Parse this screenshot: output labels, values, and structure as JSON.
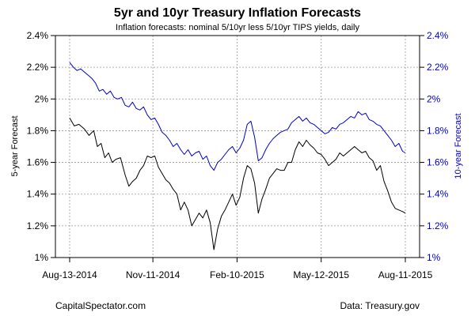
{
  "chart_data": {
    "type": "line",
    "title": "5yr and 10yr Treasury Inflation Forecasts",
    "subtitle": "Inflation forecasts: nominal 5/10yr less 5/10yr TIPS yields, daily",
    "ylabel_left": "5-year Forecast",
    "ylabel_right": "10-year Forecast",
    "xlabel": "",
    "x_tick_labels": [
      "Aug-13-2014",
      "Nov-11-2014",
      "Feb-10-2015",
      "May-12-2015",
      "Aug-11-2015"
    ],
    "x_ticks_days": [
      0,
      90,
      181,
      272,
      363
    ],
    "x_range_days": [
      0,
      363
    ],
    "y_tick_labels": [
      "1%",
      "1.2%",
      "1.4%",
      "1.6%",
      "1.8%",
      "2%",
      "2.2%",
      "2.4%"
    ],
    "y_ticks": [
      1.0,
      1.2,
      1.4,
      1.6,
      1.8,
      2.0,
      2.2,
      2.4
    ],
    "ylim": [
      1.0,
      2.4
    ],
    "grid": true,
    "series": [
      {
        "name": "5-year Forecast",
        "axis": "left",
        "color": "#000000",
        "points": [
          [
            0,
            1.88
          ],
          [
            5,
            1.83
          ],
          [
            10,
            1.84
          ],
          [
            16,
            1.81
          ],
          [
            21,
            1.77
          ],
          [
            26,
            1.8
          ],
          [
            30,
            1.7
          ],
          [
            34,
            1.72
          ],
          [
            38,
            1.63
          ],
          [
            42,
            1.66
          ],
          [
            46,
            1.6
          ],
          [
            50,
            1.62
          ],
          [
            55,
            1.63
          ],
          [
            60,
            1.52
          ],
          [
            64,
            1.45
          ],
          [
            68,
            1.48
          ],
          [
            72,
            1.5
          ],
          [
            76,
            1.55
          ],
          [
            80,
            1.58
          ],
          [
            84,
            1.64
          ],
          [
            88,
            1.63
          ],
          [
            92,
            1.64
          ],
          [
            96,
            1.57
          ],
          [
            100,
            1.53
          ],
          [
            104,
            1.49
          ],
          [
            108,
            1.47
          ],
          [
            112,
            1.43
          ],
          [
            116,
            1.4
          ],
          [
            120,
            1.3
          ],
          [
            124,
            1.35
          ],
          [
            128,
            1.3
          ],
          [
            132,
            1.2
          ],
          [
            136,
            1.24
          ],
          [
            140,
            1.28
          ],
          [
            144,
            1.25
          ],
          [
            148,
            1.3
          ],
          [
            152,
            1.22
          ],
          [
            156,
            1.05
          ],
          [
            160,
            1.18
          ],
          [
            164,
            1.26
          ],
          [
            168,
            1.3
          ],
          [
            172,
            1.35
          ],
          [
            176,
            1.4
          ],
          [
            180,
            1.33
          ],
          [
            184,
            1.38
          ],
          [
            188,
            1.5
          ],
          [
            192,
            1.58
          ],
          [
            196,
            1.56
          ],
          [
            200,
            1.47
          ],
          [
            204,
            1.28
          ],
          [
            208,
            1.37
          ],
          [
            212,
            1.43
          ],
          [
            216,
            1.5
          ],
          [
            220,
            1.53
          ],
          [
            224,
            1.56
          ],
          [
            228,
            1.55
          ],
          [
            232,
            1.55
          ],
          [
            236,
            1.6
          ],
          [
            240,
            1.6
          ],
          [
            244,
            1.68
          ],
          [
            248,
            1.73
          ],
          [
            252,
            1.7
          ],
          [
            256,
            1.74
          ],
          [
            260,
            1.71
          ],
          [
            264,
            1.69
          ],
          [
            268,
            1.66
          ],
          [
            272,
            1.65
          ],
          [
            276,
            1.62
          ],
          [
            280,
            1.58
          ],
          [
            284,
            1.6
          ],
          [
            288,
            1.62
          ],
          [
            292,
            1.66
          ],
          [
            296,
            1.64
          ],
          [
            300,
            1.66
          ],
          [
            304,
            1.68
          ],
          [
            308,
            1.7
          ],
          [
            312,
            1.68
          ],
          [
            316,
            1.66
          ],
          [
            320,
            1.67
          ],
          [
            324,
            1.63
          ],
          [
            328,
            1.61
          ],
          [
            332,
            1.55
          ],
          [
            336,
            1.58
          ],
          [
            340,
            1.48
          ],
          [
            344,
            1.42
          ],
          [
            348,
            1.35
          ],
          [
            352,
            1.31
          ],
          [
            356,
            1.3
          ],
          [
            360,
            1.29
          ],
          [
            363,
            1.28
          ]
        ]
      },
      {
        "name": "10-year Forecast",
        "axis": "right",
        "color": "#0000cc",
        "points": [
          [
            0,
            2.23
          ],
          [
            4,
            2.2
          ],
          [
            8,
            2.18
          ],
          [
            12,
            2.19
          ],
          [
            16,
            2.17
          ],
          [
            20,
            2.15
          ],
          [
            24,
            2.13
          ],
          [
            28,
            2.1
          ],
          [
            32,
            2.05
          ],
          [
            36,
            2.06
          ],
          [
            40,
            2.03
          ],
          [
            44,
            2.05
          ],
          [
            48,
            2.01
          ],
          [
            52,
            2.0
          ],
          [
            56,
            2.01
          ],
          [
            60,
            1.96
          ],
          [
            64,
            1.95
          ],
          [
            68,
            1.98
          ],
          [
            72,
            1.94
          ],
          [
            76,
            1.93
          ],
          [
            80,
            1.95
          ],
          [
            84,
            1.9
          ],
          [
            88,
            1.87
          ],
          [
            92,
            1.88
          ],
          [
            96,
            1.84
          ],
          [
            100,
            1.79
          ],
          [
            104,
            1.77
          ],
          [
            108,
            1.74
          ],
          [
            112,
            1.7
          ],
          [
            116,
            1.72
          ],
          [
            120,
            1.68
          ],
          [
            124,
            1.65
          ],
          [
            128,
            1.68
          ],
          [
            132,
            1.64
          ],
          [
            136,
            1.66
          ],
          [
            140,
            1.67
          ],
          [
            144,
            1.62
          ],
          [
            148,
            1.64
          ],
          [
            152,
            1.58
          ],
          [
            156,
            1.55
          ],
          [
            160,
            1.6
          ],
          [
            164,
            1.62
          ],
          [
            168,
            1.65
          ],
          [
            172,
            1.68
          ],
          [
            176,
            1.7
          ],
          [
            180,
            1.66
          ],
          [
            184,
            1.69
          ],
          [
            188,
            1.74
          ],
          [
            192,
            1.84
          ],
          [
            196,
            1.86
          ],
          [
            200,
            1.76
          ],
          [
            204,
            1.61
          ],
          [
            208,
            1.63
          ],
          [
            212,
            1.68
          ],
          [
            216,
            1.72
          ],
          [
            220,
            1.75
          ],
          [
            224,
            1.77
          ],
          [
            228,
            1.79
          ],
          [
            232,
            1.8
          ],
          [
            236,
            1.81
          ],
          [
            240,
            1.85
          ],
          [
            244,
            1.87
          ],
          [
            248,
            1.89
          ],
          [
            252,
            1.86
          ],
          [
            256,
            1.88
          ],
          [
            260,
            1.85
          ],
          [
            264,
            1.84
          ],
          [
            268,
            1.82
          ],
          [
            272,
            1.8
          ],
          [
            276,
            1.78
          ],
          [
            280,
            1.79
          ],
          [
            284,
            1.82
          ],
          [
            288,
            1.81
          ],
          [
            292,
            1.84
          ],
          [
            296,
            1.85
          ],
          [
            300,
            1.87
          ],
          [
            304,
            1.89
          ],
          [
            308,
            1.88
          ],
          [
            312,
            1.92
          ],
          [
            316,
            1.9
          ],
          [
            320,
            1.91
          ],
          [
            324,
            1.87
          ],
          [
            328,
            1.86
          ],
          [
            332,
            1.84
          ],
          [
            336,
            1.83
          ],
          [
            340,
            1.8
          ],
          [
            344,
            1.77
          ],
          [
            348,
            1.74
          ],
          [
            352,
            1.7
          ],
          [
            356,
            1.72
          ],
          [
            360,
            1.67
          ],
          [
            363,
            1.66
          ]
        ]
      }
    ]
  },
  "footer": {
    "left": "CapitalSpectator.com",
    "right": "Data: Treasury.gov"
  }
}
